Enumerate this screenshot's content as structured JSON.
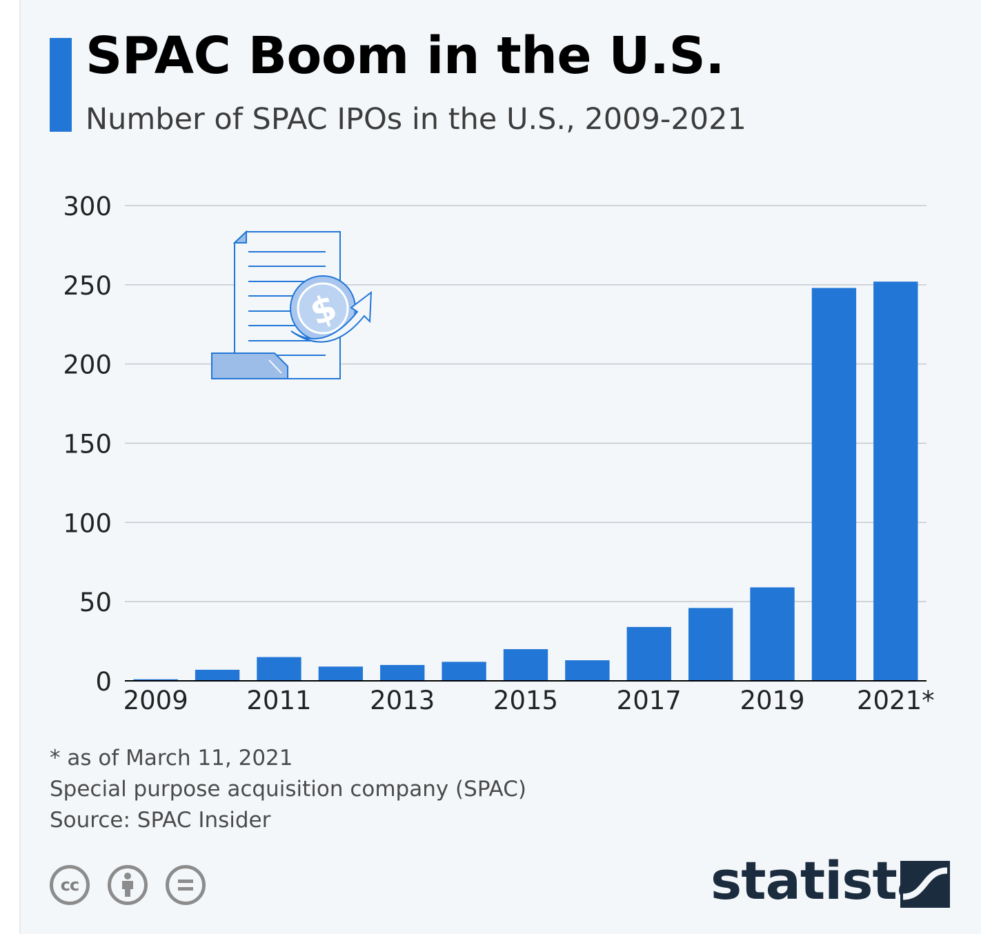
{
  "header": {
    "title": "SPAC Boom in the U.S.",
    "subtitle": "Number of SPAC IPOs in the U.S., 2009-2021"
  },
  "chart_data": {
    "type": "bar",
    "title": "SPAC Boom in the U.S.",
    "subtitle": "Number of SPAC IPOs in the U.S., 2009-2021",
    "categories": [
      "2009",
      "2010",
      "2011",
      "2012",
      "2013",
      "2014",
      "2015",
      "2016",
      "2017",
      "2018",
      "2019",
      "2020",
      "2021*"
    ],
    "tick_labels": [
      "2009",
      "",
      "2011",
      "",
      "2013",
      "",
      "2015",
      "",
      "2017",
      "",
      "2019",
      "",
      "2021*"
    ],
    "values": [
      1,
      7,
      15,
      9,
      10,
      12,
      20,
      13,
      34,
      46,
      59,
      248,
      252
    ],
    "ylim": [
      0,
      300
    ],
    "yticks": [
      0,
      50,
      100,
      150,
      200,
      250,
      300
    ],
    "xlabel": "",
    "ylabel": "",
    "grid": true,
    "bar_color": "#2276d6"
  },
  "footnotes": {
    "note": "* as of March 11, 2021",
    "definition": "Special purpose acquisition company (SPAC)",
    "source": "Source: SPAC Insider"
  },
  "license_icons": [
    "cc-icon",
    "attribution-icon",
    "no-derivatives-icon"
  ],
  "license": {
    "cc_text": "cc"
  },
  "branding": {
    "logo_text": "statista"
  },
  "colors": {
    "accent": "#2276d6",
    "background": "#f4f7fa",
    "logo": "#1b2c3f"
  }
}
